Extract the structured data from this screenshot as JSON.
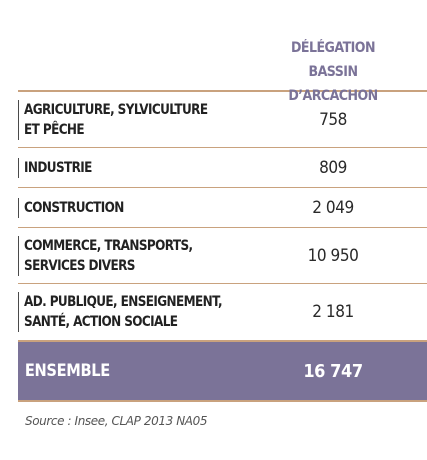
{
  "chart_data": {
    "type": "table",
    "column_header": "DÉLÉGATION BASSIN\nD’ARCACHON",
    "rows": [
      {
        "label": "AGRICULTURE, SYLVICULTURE\nET PÊCHE",
        "value": "758"
      },
      {
        "label": "INDUSTRIE",
        "value": "809"
      },
      {
        "label": "CONSTRUCTION",
        "value": "2 049"
      },
      {
        "label": "COMMERCE, TRANSPORTS,\nSERVICES DIVERS",
        "value": "10 950"
      },
      {
        "label": "AD. PUBLIQUE, ENSEIGNEMENT,\nSANTÉ, ACTION SOCIALE",
        "value": "2 181"
      }
    ],
    "total": {
      "label": "ENSEMBLE",
      "value": "16 747"
    },
    "source": "Source : Insee, CLAP 2013 NA05",
    "colors": {
      "header_text": "#7b7398",
      "total_bg": "#7b7398",
      "rule": "#c9a27e"
    }
  }
}
